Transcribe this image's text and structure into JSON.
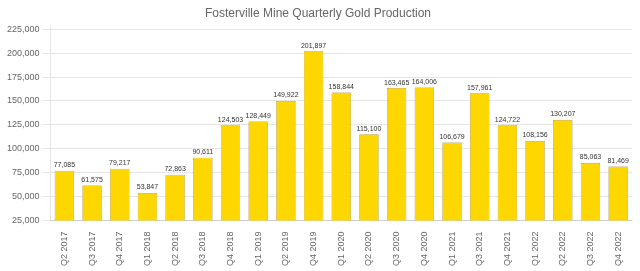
{
  "chart_data": {
    "type": "bar",
    "title": "Fosterville Mine Quarterly Gold Production",
    "categories": [
      "Q2 2017",
      "Q3 2017",
      "Q4 2017",
      "Q1 2018",
      "Q2 2018",
      "Q3 2018",
      "Q4 2018",
      "Q1 2019",
      "Q2 2019",
      "Q4 2019",
      "Q1 2020",
      "Q2 2020",
      "Q3 2020",
      "Q4 2020",
      "Q1 2021",
      "Q3 2021",
      "Q4 2021",
      "Q1 2022",
      "Q2 2022",
      "Q3 2022",
      "Q4 2022"
    ],
    "values": [
      77085,
      61575,
      79217,
      53847,
      72863,
      90611,
      124503,
      128449,
      149922,
      201897,
      158844,
      115100,
      163465,
      164006,
      106679,
      157961,
      124722,
      108156,
      130207,
      85063,
      81469
    ],
    "value_labels": [
      "77,085",
      "61,575",
      "79,217",
      "53,847",
      "72,863",
      "90,611",
      "124,503",
      "128,449",
      "149,922",
      "201,897",
      "158,844",
      "115,100",
      "163,465",
      "164,006",
      "106,679",
      "157,961",
      "124,722",
      "108,156",
      "130,207",
      "85,063",
      "81,469"
    ],
    "color": "#FFD700",
    "ylim": [
      25000,
      228000
    ],
    "yticks": [
      {
        "value": 25000,
        "label": "25,000"
      },
      {
        "value": 50000,
        "label": "50,000"
      },
      {
        "value": 75000,
        "label": "75,000"
      },
      {
        "value": 100000,
        "label": "100,000"
      },
      {
        "value": 125000,
        "label": "125,000"
      },
      {
        "value": 150000,
        "label": "150,000"
      },
      {
        "value": 175000,
        "label": "175,000"
      },
      {
        "value": 200000,
        "label": "200,000"
      },
      {
        "value": 225000,
        "label": "225,000"
      }
    ],
    "grid": true,
    "data_labels": true
  }
}
